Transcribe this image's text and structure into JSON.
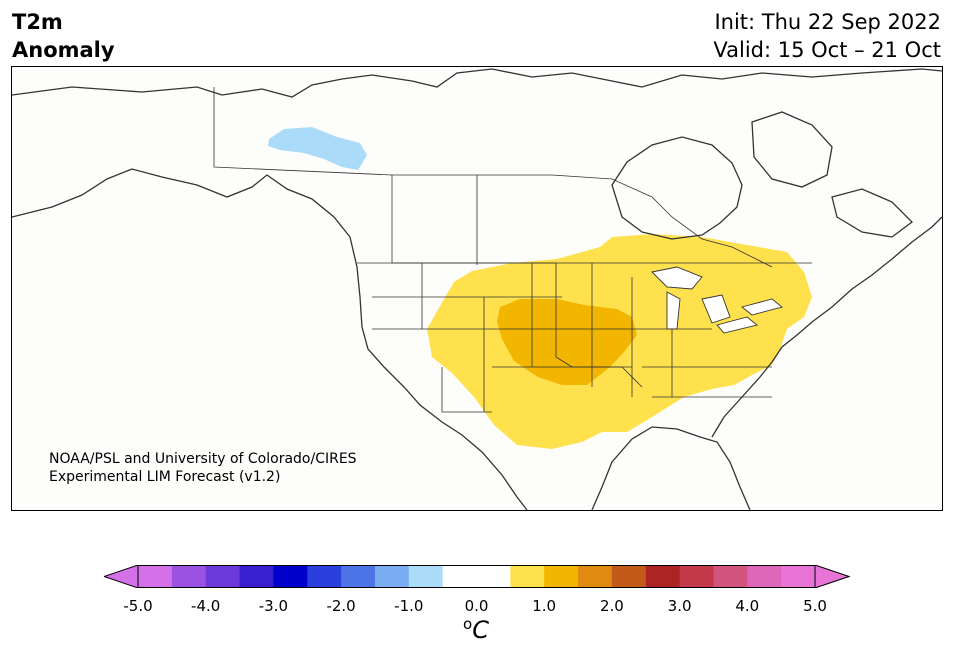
{
  "title": {
    "line1": "T2m",
    "line2": "Anomaly"
  },
  "forecast": {
    "init": "Init: Thu 22 Sep 2022",
    "valid": "Valid: 15 Oct – 21 Oct"
  },
  "credit": {
    "line1": "NOAA/PSL and University of Colorado/CIRES",
    "line2": "Experimental LIM Forecast (v1.2)"
  },
  "colorbar": {
    "unit_sup": "o",
    "unit_main": "C",
    "ticks": [
      "-5.0",
      "-4.0",
      "-3.0",
      "-2.0",
      "-1.0",
      "0.0",
      "1.0",
      "2.0",
      "3.0",
      "4.0",
      "5.0"
    ],
    "bins": [
      "#d471e8",
      "#9c52e0",
      "#6b3ad9",
      "#3a1fd1",
      "#0000cc",
      "#2a3fdb",
      "#4d74e6",
      "#79aef2",
      "#aadcfa",
      "#ffffff",
      "#ffffff",
      "#ffe14d",
      "#f2b500",
      "#e08a12",
      "#c45a1a",
      "#ae2424",
      "#c43a4a",
      "#d45480",
      "#de66b8",
      "#e874d6"
    ],
    "under_color": "#d471e8",
    "over_color": "#e874d6"
  },
  "anomaly_colors": {
    "cool_1": "#aadcfa",
    "warm_1": "#ffe14d",
    "warm_2": "#f2b500"
  }
}
